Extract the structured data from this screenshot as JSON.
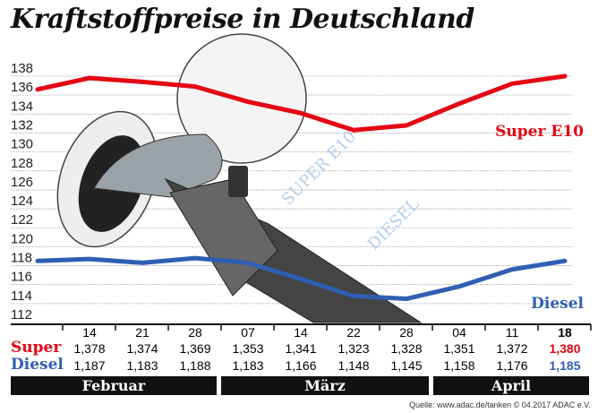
{
  "title": "Kraftstoffpreise in Deutschland",
  "chart_data": {
    "type": "line",
    "title": "Kraftstoffpreise in Deutschland",
    "y_ticks": [
      112,
      114,
      116,
      118,
      120,
      122,
      124,
      126,
      128,
      130,
      132,
      134,
      136,
      138
    ],
    "ylim": [
      112,
      138
    ],
    "grid": true,
    "categories": [
      "14",
      "21",
      "28",
      "07",
      "14",
      "22",
      "28",
      "04",
      "11",
      "18"
    ],
    "months": [
      "Februar",
      "März",
      "April"
    ],
    "series": [
      {
        "name": "Super E10",
        "row_label": "Super",
        "color": "#e30613",
        "values": [
          1.378,
          1.374,
          1.369,
          1.353,
          1.341,
          1.323,
          1.328,
          1.351,
          1.372,
          1.38
        ],
        "labels": [
          "1,378",
          "1,374",
          "1,369",
          "1,353",
          "1,341",
          "1,323",
          "1,328",
          "1,351",
          "1,372",
          "1,380"
        ]
      },
      {
        "name": "Diesel",
        "row_label": "Diesel",
        "color": "#2f5fb3",
        "values": [
          1.187,
          1.183,
          1.188,
          1.183,
          1.166,
          1.148,
          1.145,
          1.158,
          1.176,
          1.185
        ],
        "labels": [
          "1,187",
          "1,183",
          "1,188",
          "1,183",
          "1,166",
          "1,148",
          "1,145",
          "1,158",
          "1,176",
          "1,185"
        ]
      }
    ]
  },
  "watermark": [
    "SUPER E10",
    "DIESEL"
  ],
  "source": "Quelle: www.adac.de/tanken   © 04.2017  ADAC e.V."
}
